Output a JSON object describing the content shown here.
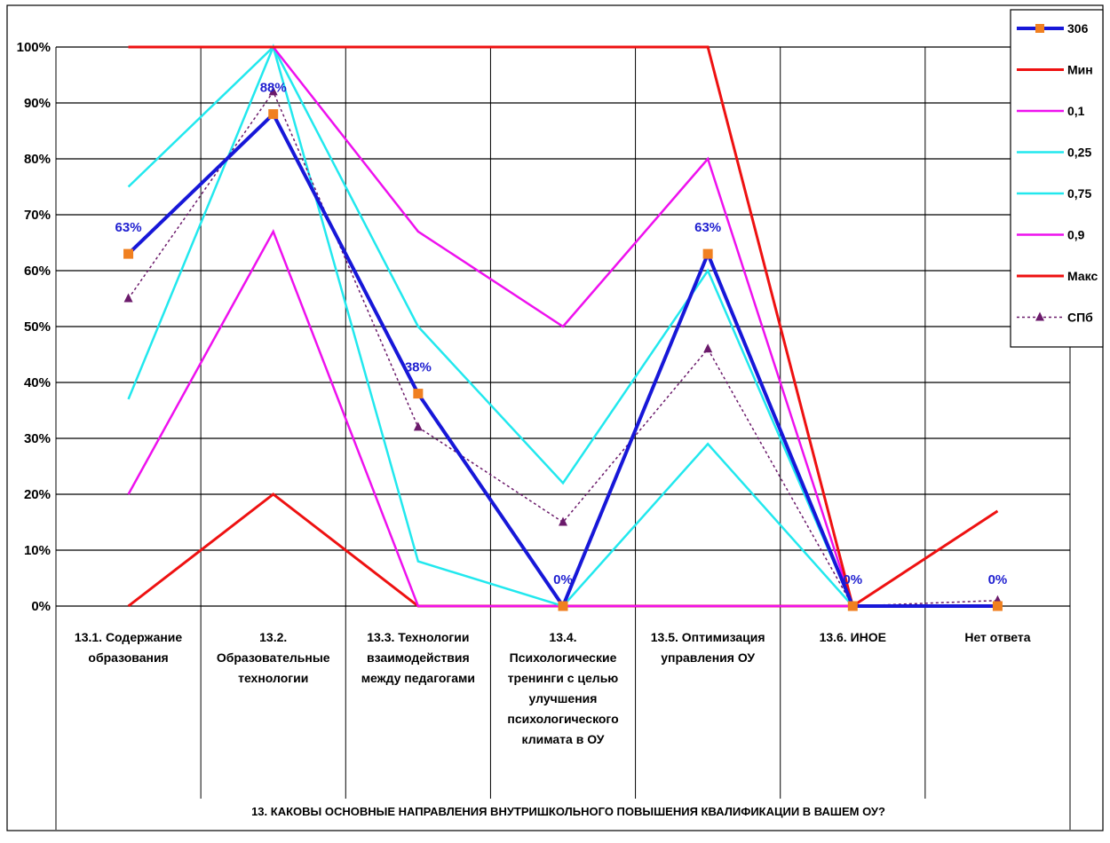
{
  "chart_data": {
    "type": "line",
    "title": "13. КАКОВЫ ОСНОВНЫЕ НАПРАВЛЕНИЯ ВНУТРИШКОЛЬНОГО ПОВЫШЕНИЯ КВАЛИФИКАЦИИ В ВАШЕМ ОУ?",
    "categories": [
      [
        "13.1. Содержание",
        "образования"
      ],
      [
        "13.2.",
        "Образовательные",
        "технологии"
      ],
      [
        "13.3. Технологии",
        "взаимодействия",
        "между педагогами"
      ],
      [
        "13.4.",
        "Психологические",
        "тренинги с целью",
        "улучшения",
        "психологического",
        "климата в ОУ"
      ],
      [
        "13.5. Оптимизация",
        "управления ОУ"
      ],
      [
        "13.6. ИНОЕ"
      ],
      [
        "Нет ответа"
      ]
    ],
    "y_ticks": [
      "0%",
      "10%",
      "20%",
      "30%",
      "40%",
      "50%",
      "60%",
      "70%",
      "80%",
      "90%",
      "100%"
    ],
    "ylim": [
      0,
      100
    ],
    "grid": true,
    "legend_position": "top-right",
    "series": [
      {
        "name": "Мин",
        "color": "#ee1111",
        "width": 3,
        "values": [
          0,
          20,
          0,
          0,
          0,
          0,
          17
        ]
      },
      {
        "name": "0,1",
        "color": "#ee11ee",
        "width": 2.5,
        "values": [
          20,
          67,
          0,
          0,
          0,
          0,
          0
        ]
      },
      {
        "name": "0,25",
        "color": "#22e8ee",
        "width": 2.5,
        "values": [
          37,
          100,
          8,
          0,
          29,
          0,
          0
        ]
      },
      {
        "name": "0,75",
        "color": "#22e8ee",
        "width": 2.5,
        "values": [
          75,
          100,
          50,
          22,
          60,
          0,
          0
        ]
      },
      {
        "name": "0,9",
        "color": "#ee11ee",
        "width": 2.5,
        "values": [
          100,
          100,
          67,
          50,
          80,
          0,
          0
        ]
      },
      {
        "name": "Макс",
        "color": "#ee1111",
        "width": 3,
        "values": [
          100,
          100,
          100,
          100,
          100,
          0,
          0
        ]
      },
      {
        "name": "СПб",
        "color": "#6b1a6b",
        "width": 1.5,
        "dash": "3,3",
        "marker": "triangle",
        "values": [
          55,
          92,
          32,
          15,
          46,
          0,
          1
        ]
      },
      {
        "name": "306",
        "color": "#1717d8",
        "width": 4,
        "marker": "square",
        "marker_color": "#f08020",
        "values": [
          63,
          88,
          38,
          0,
          63,
          0,
          0
        ],
        "labels": [
          "63%",
          "88%",
          "38%",
          "0%",
          "63%",
          "0%",
          "0%"
        ]
      }
    ],
    "legend_order": [
      "306",
      "Мин",
      "0,1",
      "0,25",
      "0,75",
      "0,9",
      "Макс",
      "СПб"
    ]
  }
}
